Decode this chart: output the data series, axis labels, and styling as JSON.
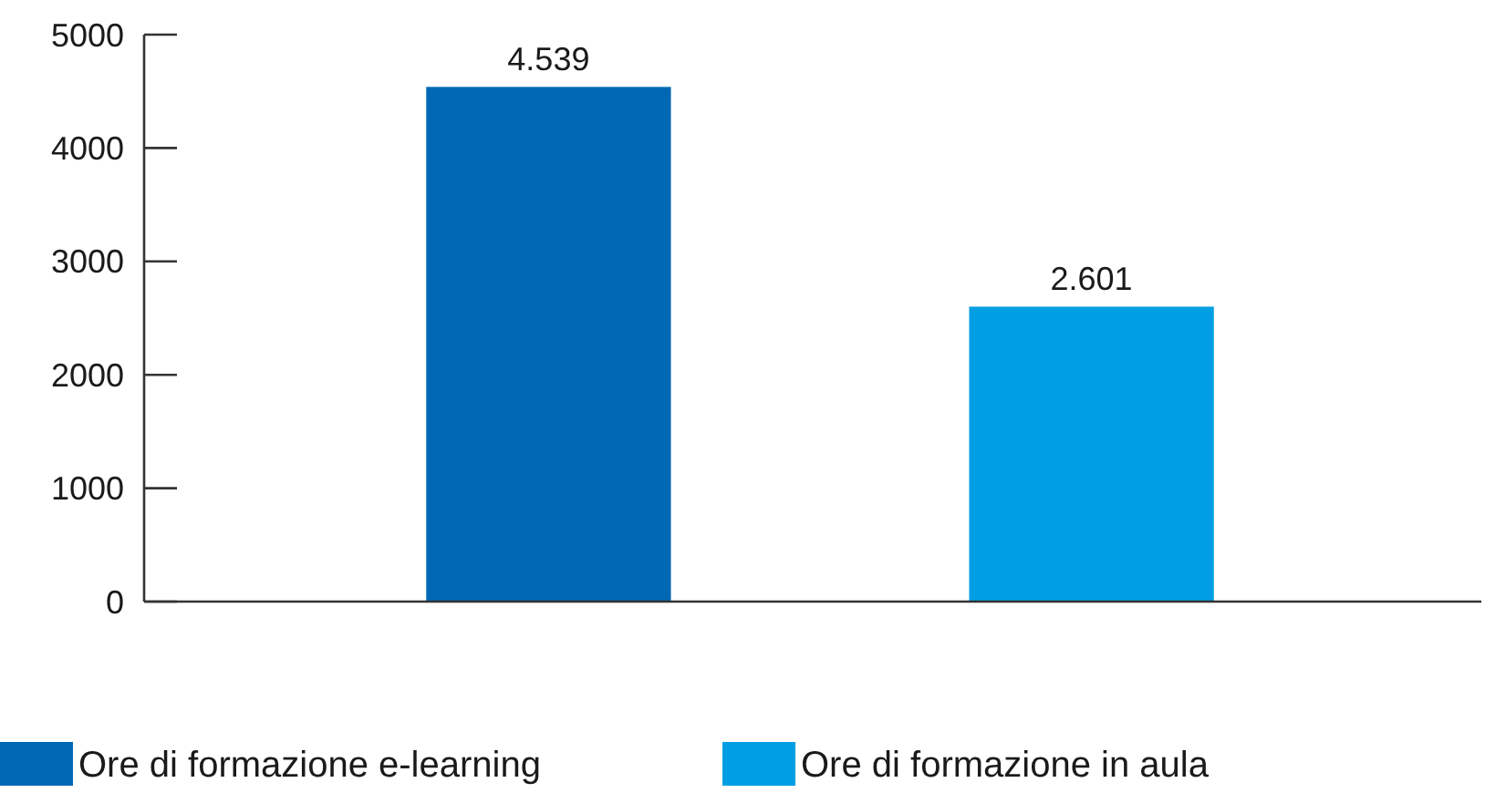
{
  "chart_data": {
    "type": "bar",
    "categories": [
      null
    ],
    "series": [
      {
        "name": "Ore di formazione e-learning",
        "color": "#0068b4",
        "values": [
          4539
        ],
        "value_labels": [
          "4.539"
        ]
      },
      {
        "name": "Ore di formazione in aula",
        "color": "#009fe3",
        "values": [
          2601
        ],
        "value_labels": [
          "2.601"
        ]
      }
    ],
    "ylim": [
      0,
      5000
    ],
    "yticks": [
      0,
      1000,
      2000,
      3000,
      4000,
      5000
    ],
    "legend": "bottom"
  }
}
